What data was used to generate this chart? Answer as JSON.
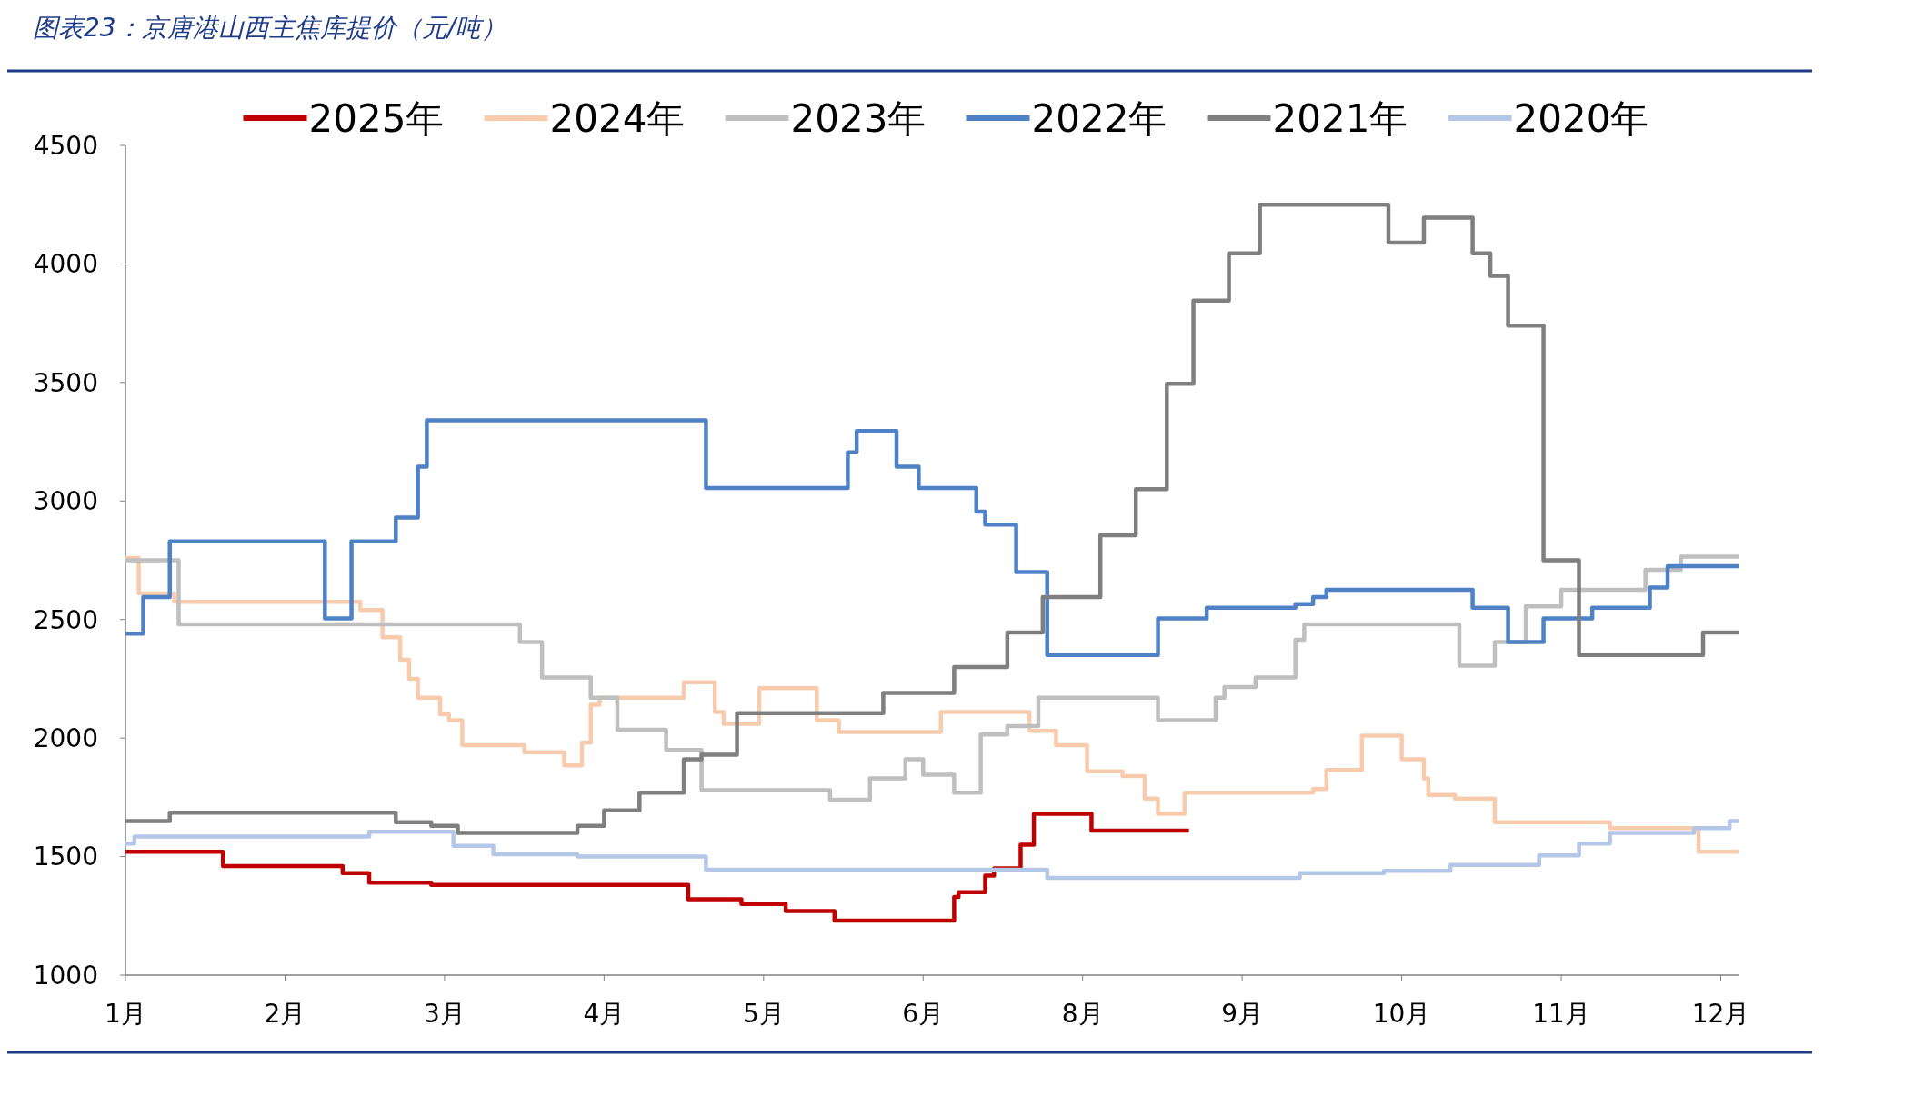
{
  "chart_data": {
    "type": "step",
    "title": "图表23：京唐港山西主焦库提价（元/吨）",
    "legend": "top",
    "grid": false,
    "line_style": "solid",
    "marker": "none",
    "xlim": [
      "--01-01",
      "--12-31"
    ],
    "xticks": [
      {
        "value": "--01-01",
        "label": "1月"
      },
      {
        "value": "--02-06",
        "label": "2月"
      },
      {
        "value": "--03-14",
        "label": "3月"
      },
      {
        "value": "--04-19",
        "label": "4月"
      },
      {
        "value": "--05-25",
        "label": "5月"
      },
      {
        "value": "--06-30",
        "label": "6月"
      },
      {
        "value": "--08-05",
        "label": "8月"
      },
      {
        "value": "--09-10",
        "label": "9月"
      },
      {
        "value": "--10-16",
        "label": "10月"
      },
      {
        "value": "--11-21",
        "label": "11月"
      },
      {
        "value": "--12-27",
        "label": "12月"
      }
    ],
    "ylim": [
      1000,
      4500
    ],
    "yticks": [
      1000,
      1500,
      2000,
      2500,
      3000,
      3500,
      4000,
      4500
    ],
    "series": [
      {
        "name": "2025年",
        "color": "#c00000",
        "x": [
          "--01-01",
          "--01-23",
          "--02-19",
          "--02-25",
          "--03-11",
          "--05-08",
          "--05-20",
          "--05-30",
          "--06-10",
          "--07-07",
          "--07-08",
          "--07-14",
          "--07-16",
          "--07-22",
          "--07-25",
          "--08-07",
          "--08-29"
        ],
        "values": [
          1520,
          1460,
          1430,
          1390,
          1380,
          1320,
          1300,
          1270,
          1230,
          1330,
          1350,
          1420,
          1450,
          1550,
          1680,
          1610,
          1610
        ]
      },
      {
        "name": "2024年",
        "color": "#f8cbad",
        "x": [
          "--01-01",
          "--01-04",
          "--01-12",
          "--02-23",
          "--02-28",
          "--03-04",
          "--03-06",
          "--03-08",
          "--03-13",
          "--03-15",
          "--03-18",
          "--04-01",
          "--04-10",
          "--04-14",
          "--04-16",
          "--04-18",
          "--05-07",
          "--05-14",
          "--05-16",
          "--05-24",
          "--06-06",
          "--06-11",
          "--07-04",
          "--07-24",
          "--07-30",
          "--08-06",
          "--08-14",
          "--08-19",
          "--08-22",
          "--08-28",
          "--09-26",
          "--09-29",
          "--10-07",
          "--10-16",
          "--10-21",
          "--10-22",
          "--10-28",
          "--11-06",
          "--12-02",
          "--12-22",
          "--12-31"
        ],
        "values": [
          2760,
          2610,
          2575,
          2540,
          2425,
          2330,
          2250,
          2170,
          2100,
          2075,
          1970,
          1940,
          1885,
          1980,
          2140,
          2170,
          2235,
          2110,
          2060,
          2210,
          2075,
          2025,
          2110,
          2030,
          1970,
          1860,
          1840,
          1745,
          1680,
          1770,
          1785,
          1865,
          2010,
          1910,
          1830,
          1760,
          1745,
          1645,
          1620,
          1520,
          1520
        ]
      },
      {
        "name": "2023年",
        "color": "#bfbfbf",
        "x": [
          "--01-01",
          "--01-13",
          "--03-31",
          "--04-05",
          "--04-16",
          "--04-22",
          "--05-03",
          "--05-11",
          "--06-09",
          "--06-18",
          "--06-26",
          "--06-30",
          "--07-07",
          "--07-13",
          "--07-19",
          "--07-26",
          "--08-22",
          "--09-04",
          "--09-06",
          "--09-13",
          "--09-22",
          "--09-24",
          "--10-29",
          "--11-06",
          "--11-13",
          "--11-21",
          "--12-10",
          "--12-18",
          "--12-31"
        ],
        "values": [
          2750,
          2480,
          2405,
          2255,
          2170,
          2035,
          1950,
          1780,
          1740,
          1830,
          1910,
          1845,
          1770,
          2015,
          2050,
          2170,
          2075,
          2170,
          2215,
          2255,
          2415,
          2480,
          2305,
          2405,
          2555,
          2625,
          2710,
          2765,
          2765
        ]
      },
      {
        "name": "2022年",
        "color": "#4f81c7",
        "x": [
          "--01-01",
          "--01-05",
          "--01-11",
          "--02-15",
          "--02-21",
          "--03-03",
          "--03-08",
          "--03-10",
          "--05-12",
          "--06-13",
          "--06-15",
          "--06-24",
          "--06-29",
          "--07-12",
          "--07-14",
          "--07-21",
          "--07-28",
          "--08-22",
          "--09-02",
          "--09-22",
          "--09-26",
          "--09-29",
          "--11-01",
          "--11-09",
          "--11-17",
          "--11-28",
          "--12-11",
          "--12-15",
          "--12-31"
        ],
        "values": [
          2440,
          2595,
          2830,
          2505,
          2830,
          2930,
          3145,
          3340,
          3055,
          3205,
          3295,
          3145,
          3055,
          2955,
          2900,
          2700,
          2350,
          2505,
          2550,
          2565,
          2595,
          2625,
          2550,
          2405,
          2505,
          2550,
          2635,
          2725,
          2725
        ]
      },
      {
        "name": "2021年",
        "color": "#7f7f7f",
        "x": [
          "--01-01",
          "--01-11",
          "--03-03",
          "--03-11",
          "--03-17",
          "--04-13",
          "--04-19",
          "--04-27",
          "--05-07",
          "--05-11",
          "--05-19",
          "--06-21",
          "--07-07",
          "--07-19",
          "--07-27",
          "--08-09",
          "--08-17",
          "--08-24",
          "--08-30",
          "--09-07",
          "--09-14",
          "--10-13",
          "--10-21",
          "--11-01",
          "--11-05",
          "--11-09",
          "--11-17",
          "--11-25",
          "--12-23",
          "--12-31"
        ],
        "values": [
          1650,
          1685,
          1645,
          1630,
          1600,
          1630,
          1695,
          1770,
          1910,
          1930,
          2105,
          2190,
          2300,
          2445,
          2595,
          2855,
          3050,
          3495,
          3845,
          4045,
          4250,
          4090,
          4195,
          4045,
          3950,
          3740,
          2750,
          2350,
          2445,
          2445
        ]
      },
      {
        "name": "2020年",
        "color": "#b4c7e7",
        "x": [
          "--01-01",
          "--01-03",
          "--02-25",
          "--03-16",
          "--03-25",
          "--04-13",
          "--05-12",
          "--07-28",
          "--09-23",
          "--10-12",
          "--10-27",
          "--11-16",
          "--11-25",
          "--12-02",
          "--12-21",
          "--12-29",
          "--12-31"
        ],
        "values": [
          1555,
          1585,
          1605,
          1545,
          1510,
          1500,
          1445,
          1410,
          1430,
          1440,
          1465,
          1505,
          1555,
          1600,
          1620,
          1650,
          1650
        ]
      }
    ]
  }
}
